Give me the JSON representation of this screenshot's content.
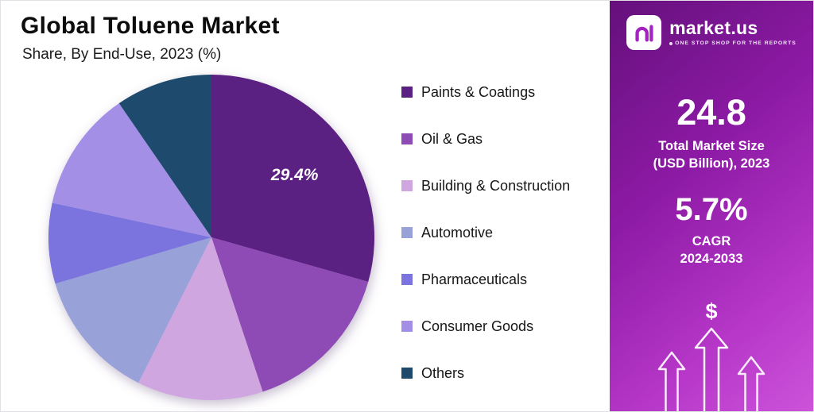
{
  "chart_data": {
    "type": "pie",
    "title": "Global Toluene Market",
    "subtitle": "Share, By End-Use, 2023 (%)",
    "labels": [
      "Paints & Coatings",
      "Oil & Gas",
      "Building & Construction",
      "Automotive",
      "Pharmaceuticals",
      "Consumer Goods",
      "Others"
    ],
    "values": [
      29.4,
      15.5,
      12.5,
      13.0,
      8.0,
      12.0,
      9.6
    ],
    "colors": [
      "#5a2082",
      "#8f4bb5",
      "#cfa6e0",
      "#98a2d8",
      "#7b74de",
      "#a38fe6",
      "#1e4a6d"
    ],
    "highlight": {
      "slice_index": 0,
      "text": "29.4%"
    },
    "start_angle_deg": 0,
    "direction": "clockwise",
    "legend_position": "right",
    "data_labels_shown": [
      "29.4%"
    ]
  },
  "side_panel": {
    "brand": {
      "name": "market.us",
      "tagline": "ONE STOP SHOP FOR THE REPORTS"
    },
    "stats": [
      {
        "value": "24.8",
        "label_line1": "Total Market Size",
        "label_line2": "(USD Billion), 2023"
      },
      {
        "value": "5.7%",
        "label_line1": "CAGR",
        "label_line2": "2024-2033"
      }
    ],
    "dollar": "$",
    "colors": {
      "gradient_from": "#65107c",
      "gradient_to": "#cc53da",
      "logo_glyph": "#a424c0"
    }
  }
}
